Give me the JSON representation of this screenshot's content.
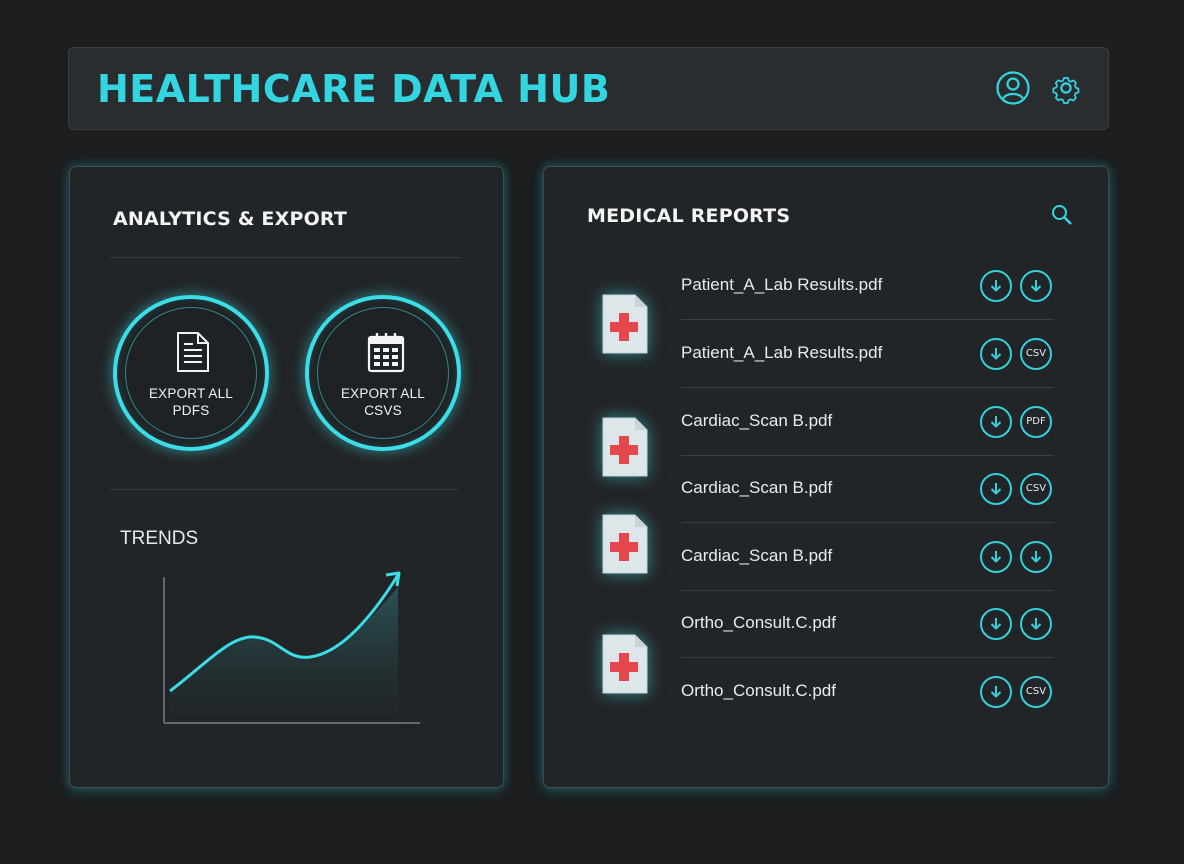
{
  "app": {
    "title": "HEALTHCARE DATA HUB"
  },
  "header": {
    "icons": [
      "user-icon",
      "gear-icon"
    ]
  },
  "colors": {
    "accent": "#33d6e0",
    "background": "#1c1e20",
    "panel": "#222527",
    "medical_red": "#e4474c"
  },
  "analytics": {
    "title": "ANALYTICS & EXPORT",
    "export_pdfs": {
      "label": "EXPORT ALL\nPDFS",
      "icon": "document-icon"
    },
    "export_csvs": {
      "label": "EXPORT ALL\nCSVS",
      "icon": "calendar-icon"
    },
    "trends_label": "TRENDS"
  },
  "reports": {
    "title": "MEDICAL REPORTS",
    "search_icon": "search-icon",
    "rows": [
      {
        "file": "Patient_A_Lab Results.pdf",
        "actions": [
          "download",
          "download"
        ]
      },
      {
        "file": "Patient_A_Lab Results.pdf",
        "actions": [
          "download",
          "CSV"
        ]
      },
      {
        "file": "Cardiac_Scan B.pdf",
        "actions": [
          "download",
          "PDF"
        ]
      },
      {
        "file": "Cardiac_Scan B.pdf",
        "actions": [
          "download",
          "CSV"
        ]
      },
      {
        "file": "Cardiac_Scan B.pdf",
        "actions": [
          "download",
          "download"
        ]
      },
      {
        "file": "Ortho_Consult.C.pdf",
        "actions": [
          "download",
          "download"
        ]
      },
      {
        "file": "Ortho_Consult.C.pdf",
        "actions": [
          "download",
          "CSV"
        ]
      }
    ]
  }
}
